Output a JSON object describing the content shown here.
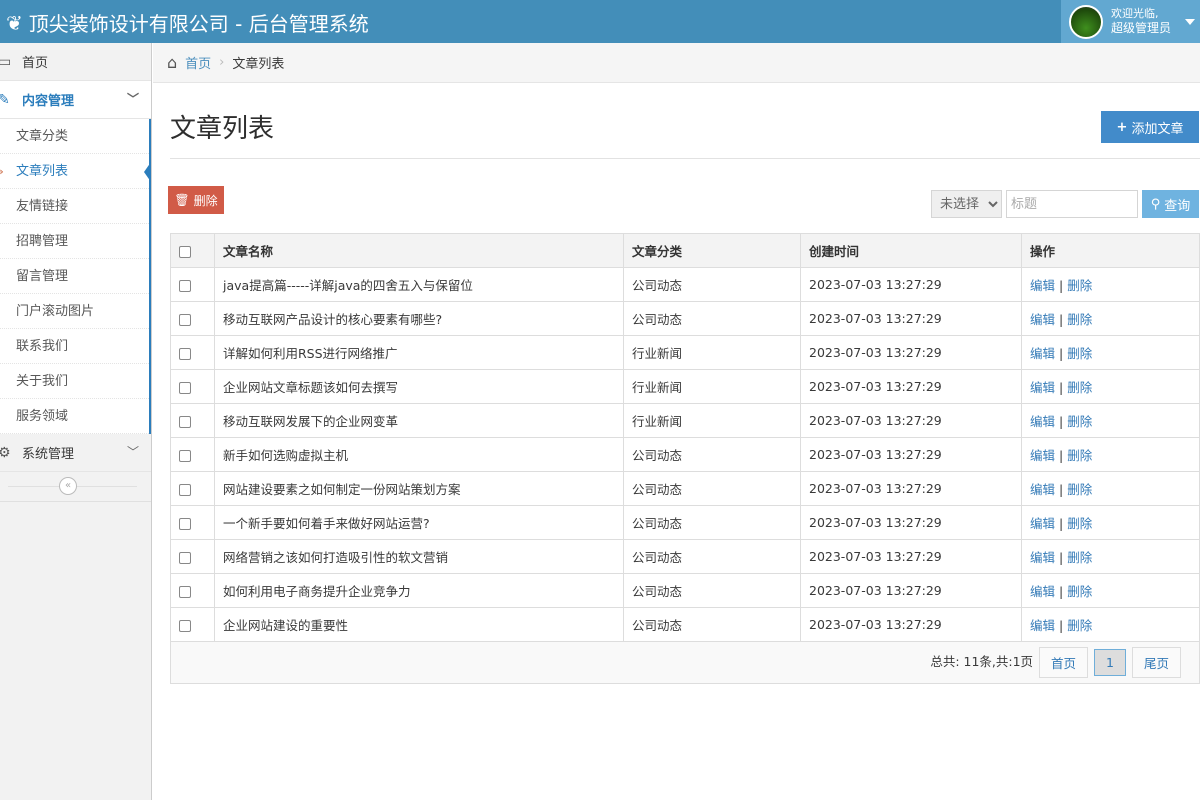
{
  "header": {
    "title": "顶尖装饰设计有限公司 - 后台管理系统",
    "welcome": "欢迎光临,",
    "user": "超级管理员"
  },
  "sidebar": {
    "home": "首页",
    "content": "内容管理",
    "system": "系统管理",
    "items": [
      {
        "label": "文章分类"
      },
      {
        "label": "文章列表",
        "active": true
      },
      {
        "label": "友情链接"
      },
      {
        "label": "招聘管理"
      },
      {
        "label": "留言管理"
      },
      {
        "label": "门户滚动图片"
      },
      {
        "label": "联系我们"
      },
      {
        "label": "关于我们"
      },
      {
        "label": "服务领域"
      }
    ]
  },
  "breadcrumb": {
    "home": "首页",
    "current": "文章列表"
  },
  "page": {
    "title": "文章列表",
    "add_label": "添加文章",
    "delete_label": "删除",
    "select_value": "未选择",
    "search_placeholder": "标题",
    "query_label": "查询"
  },
  "table": {
    "headers": [
      "文章名称",
      "文章分类",
      "创建时间",
      "操作"
    ],
    "rows": [
      [
        "java提高篇-----详解java的四舍五入与保留位",
        "公司动态",
        "2023-07-03 13:27:29"
      ],
      [
        "移动互联网产品设计的核心要素有哪些?",
        "公司动态",
        "2023-07-03 13:27:29"
      ],
      [
        "详解如何利用RSS进行网络推广",
        "行业新闻",
        "2023-07-03 13:27:29"
      ],
      [
        "企业网站文章标题该如何去撰写",
        "行业新闻",
        "2023-07-03 13:27:29"
      ],
      [
        "移动互联网发展下的企业网变革",
        "行业新闻",
        "2023-07-03 13:27:29"
      ],
      [
        "新手如何选购虚拟主机",
        "公司动态",
        "2023-07-03 13:27:29"
      ],
      [
        "网站建设要素之如何制定一份网站策划方案",
        "公司动态",
        "2023-07-03 13:27:29"
      ],
      [
        "一个新手要如何着手来做好网站运营?",
        "公司动态",
        "2023-07-03 13:27:29"
      ],
      [
        "网络营销之该如何打造吸引性的软文营销",
        "公司动态",
        "2023-07-03 13:27:29"
      ],
      [
        "如何利用电子商务提升企业竞争力",
        "公司动态",
        "2023-07-03 13:27:29"
      ],
      [
        "企业网站建设的重要性",
        "公司动态",
        "2023-07-03 13:27:29"
      ]
    ],
    "edit": "编辑",
    "sep": "|",
    "delete": "删除"
  },
  "pager": {
    "summary": "总共: 11条,共:1页",
    "first": "首页",
    "current": "1",
    "last": "尾页"
  },
  "colors": {
    "header": "#438eb9",
    "primary": "#428bca",
    "danger": "#d15b47",
    "info": "#6fb3e0"
  }
}
